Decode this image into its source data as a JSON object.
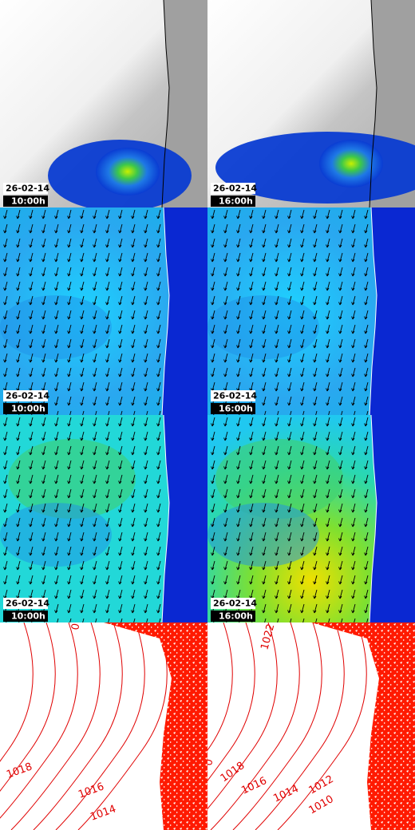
{
  "panels": [
    {
      "date": "26-02-14",
      "time": "10:00h"
    },
    {
      "date": "26-02-14",
      "time": "16:00h"
    },
    {
      "date": "26-02-14",
      "time": "10:00h"
    },
    {
      "date": "26-02-14",
      "time": "16:00h"
    },
    {
      "date": "26-02-14",
      "time": "10:00h"
    },
    {
      "date": "26-02-14",
      "time": "16:00h"
    }
  ],
  "isobars": [
    {
      "labels": [
        "0",
        "1018",
        "1016",
        "1014"
      ]
    },
    {
      "labels": [
        "1022",
        "0",
        "1018",
        "1016",
        "1014",
        "1012",
        "1010"
      ]
    }
  ]
}
